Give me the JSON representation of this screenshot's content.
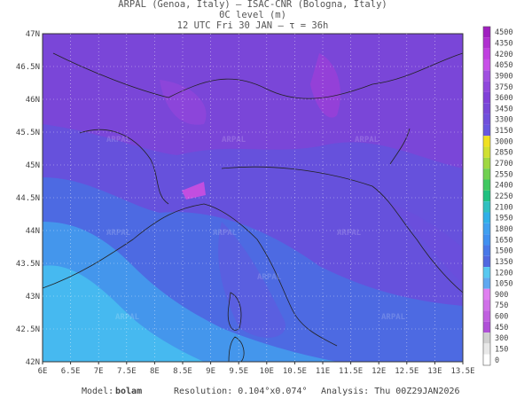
{
  "header": {
    "line1": "ARPAL (Genoa, Italy)  –  ISAC-CNR (Bologna, Italy)",
    "line2": "0C level (m)",
    "line3": "12 UTC Fri 30 JAN  –  τ = 36h"
  },
  "map": {
    "lon_labels": [
      "6E",
      "6.5E",
      "7E",
      "7.5E",
      "8E",
      "8.5E",
      "9E",
      "9.5E",
      "10E",
      "10.5E",
      "11E",
      "11.5E",
      "12E",
      "12.5E",
      "13E",
      "13.5E"
    ],
    "lat_labels": [
      "47N",
      "46.5N",
      "46N",
      "45.5N",
      "45N",
      "44.5N",
      "44N",
      "43.5N",
      "43N",
      "42.5N",
      "42N"
    ],
    "watermark": "ARPAL"
  },
  "colorbar": {
    "labels": [
      4500,
      4350,
      4200,
      4050,
      3900,
      3750,
      3600,
      3450,
      3300,
      3150,
      3000,
      2850,
      2700,
      2550,
      2400,
      2250,
      2100,
      1950,
      1800,
      1650,
      1500,
      1350,
      1200,
      1050,
      900,
      750,
      600,
      450,
      300,
      150,
      0
    ]
  },
  "footer": {
    "model_label": "Model:",
    "model": "bolam",
    "resolution": "Resolution: 0.104°x0.074°",
    "analysis": "Analysis: Thu 00Z29JAN2026"
  }
}
